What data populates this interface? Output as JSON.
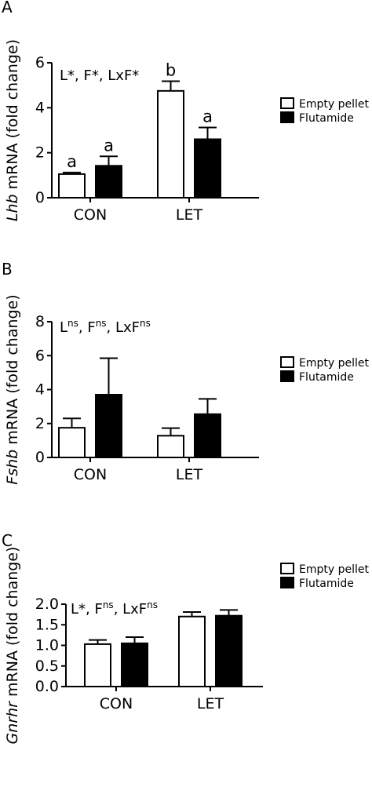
{
  "legend": {
    "empty_label": "Empty pellet",
    "flutamide_label": "Flutamide",
    "empty_color": "#ffffff",
    "flutamide_color": "#000000"
  },
  "chart_data": [
    {
      "type": "bar",
      "panel_label": "A",
      "ylabel_gene": "Lhb",
      "ylabel_rest": " mRNA (fold change)",
      "stat_text": [
        {
          "t": "L*, F*, LxF*"
        }
      ],
      "categories": [
        "CON",
        "LET"
      ],
      "series": [
        {
          "name": "Empty pellet",
          "values": [
            1.05,
            4.75
          ],
          "errors": [
            0.07,
            0.43
          ],
          "sig": [
            "a",
            "b"
          ]
        },
        {
          "name": "Flutamide",
          "values": [
            1.42,
            2.6
          ],
          "errors": [
            0.42,
            0.52
          ],
          "sig": [
            "a",
            "a"
          ]
        }
      ],
      "ylim": [
        0,
        6
      ],
      "yticks": [
        0,
        2,
        4,
        6
      ],
      "tick_labels": [
        "0",
        "2",
        "4",
        "6"
      ],
      "grid": false,
      "legend_position": "right"
    },
    {
      "type": "bar",
      "panel_label": "B",
      "ylabel_gene": "Fshb",
      "ylabel_rest": " mRNA (fold change)",
      "stat_text": [
        {
          "t": "L"
        },
        {
          "t": "ns",
          "sup": true
        },
        {
          "t": ", F"
        },
        {
          "t": "ns",
          "sup": true
        },
        {
          "t": ", LxF"
        },
        {
          "t": "ns",
          "sup": true
        }
      ],
      "categories": [
        "CON",
        "LET"
      ],
      "series": [
        {
          "name": "Empty pellet",
          "values": [
            1.75,
            1.28
          ],
          "errors": [
            0.55,
            0.45
          ],
          "sig": [
            "",
            ""
          ]
        },
        {
          "name": "Flutamide",
          "values": [
            3.7,
            2.55
          ],
          "errors": [
            2.15,
            0.9
          ],
          "sig": [
            "",
            ""
          ]
        }
      ],
      "ylim": [
        0,
        8
      ],
      "yticks": [
        0,
        2,
        4,
        6,
        8
      ],
      "tick_labels": [
        "0",
        "2",
        "4",
        "6",
        "8"
      ],
      "grid": false,
      "legend_position": "right"
    },
    {
      "type": "bar",
      "panel_label": "C",
      "ylabel_gene": "Gnrhr",
      "ylabel_rest": " mRNA (fold change)",
      "stat_text": [
        {
          "t": "L*, F"
        },
        {
          "t": "ns",
          "sup": true
        },
        {
          "t": ", LxF"
        },
        {
          "t": "ns",
          "sup": true
        }
      ],
      "categories": [
        "CON",
        "LET"
      ],
      "series": [
        {
          "name": "Empty pellet",
          "values": [
            1.03,
            1.7
          ],
          "errors": [
            0.1,
            0.11
          ],
          "sig": [
            "",
            ""
          ]
        },
        {
          "name": "Flutamide",
          "values": [
            1.05,
            1.72
          ],
          "errors": [
            0.15,
            0.14
          ],
          "sig": [
            "",
            ""
          ]
        }
      ],
      "ylim": [
        0,
        2.0
      ],
      "yticks": [
        0,
        0.5,
        1.0,
        1.5,
        2.0
      ],
      "tick_labels": [
        "0.0",
        "0.5",
        "1.0",
        "1.5",
        "2.0"
      ],
      "grid": false,
      "legend_position": "right"
    }
  ]
}
